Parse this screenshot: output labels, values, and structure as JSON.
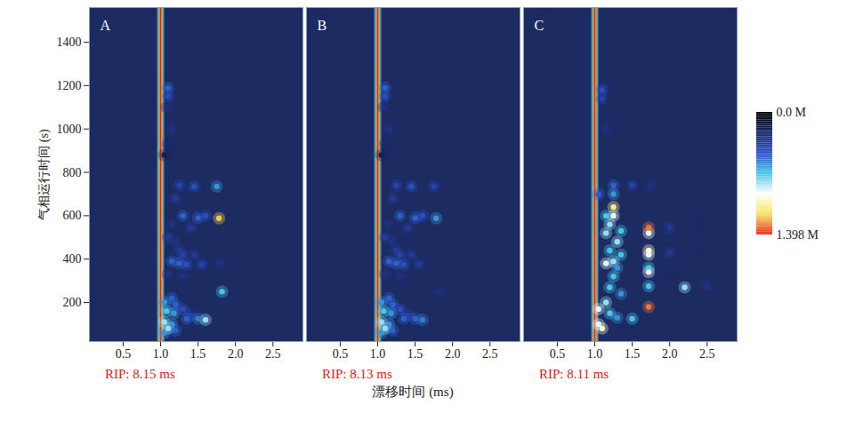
{
  "chart_data": {
    "type": "heatmap",
    "x_label": "漂移时间 (ms)",
    "y_label": "气相运行时间 (s)",
    "xlim": [
      0.05,
      2.9
    ],
    "xticks": [
      0.5,
      {
        "value": 1,
        "label": "1.0"
      },
      1.5,
      {
        "value": 2,
        "label": "2.0"
      },
      2.5
    ],
    "ylim": [
      20,
      1560
    ],
    "yticks": [
      200,
      400,
      600,
      800,
      1000,
      1200,
      1400
    ],
    "colorbar": {
      "range": [
        0,
        1.398
      ],
      "ticks": [
        {
          "value": 0,
          "label": "0.0 M"
        },
        {
          "value": 1.398,
          "label": "1.398 M"
        }
      ]
    },
    "panels": [
      {
        "title": "A",
        "annotation": "RIP: 8.15 ms",
        "rip_position": 1.0,
        "spots": {
          "x": [
            1.1,
            1.1,
            1.08,
            1.15,
            1.1,
            1.05,
            1.25,
            1.45,
            1.75,
            1.2,
            1.3,
            1.5,
            1.6,
            1.78,
            1.15,
            1.4,
            1.1,
            1.2,
            1.25,
            1.3,
            1.45,
            1.15,
            1.25,
            1.35,
            1.55,
            1.8,
            1.1,
            1.3,
            1.82,
            1.15,
            1.05,
            1.2,
            1.3,
            1.08,
            1.18,
            1.4,
            1.5,
            1.6,
            1.35,
            1.05,
            1.15,
            1.1,
            1.05,
            1.2
          ],
          "y": [
            1190,
            1150,
            1100,
            1000,
            930,
            880,
            740,
            735,
            735,
            680,
            600,
            590,
            600,
            588,
            560,
            545,
            500,
            480,
            440,
            420,
            420,
            390,
            380,
            375,
            375,
            380,
            330,
            320,
            250,
            220,
            200,
            190,
            170,
            160,
            150,
            140,
            125,
            120,
            125,
            110,
            100,
            80,
            60,
            70
          ],
          "values": [
            0.5,
            0.45,
            0.3,
            0.3,
            0.25,
            0.2,
            0.4,
            0.45,
            0.6,
            0.35,
            0.5,
            0.5,
            0.45,
            1.2,
            0.3,
            0.35,
            0.35,
            0.3,
            0.35,
            0.4,
            0.35,
            0.5,
            0.5,
            0.45,
            0.4,
            0.3,
            0.3,
            0.3,
            0.7,
            0.5,
            0.6,
            0.5,
            0.45,
            0.7,
            0.6,
            0.4,
            0.55,
            0.8,
            0.5,
            0.8,
            0.6,
            0.8,
            0.6,
            0.5
          ]
        }
      },
      {
        "title": "B",
        "annotation": "RIP: 8.13 ms",
        "rip_position": 1.0,
        "tick_labels": "x",
        "spots": {
          "x": [
            1.1,
            1.1,
            1.08,
            1.15,
            1.1,
            1.05,
            1.25,
            1.45,
            1.75,
            1.2,
            1.3,
            1.5,
            1.6,
            1.78,
            1.15,
            1.4,
            1.1,
            1.2,
            1.25,
            1.3,
            1.45,
            1.15,
            1.25,
            1.35,
            1.55,
            1.1,
            1.3,
            1.82,
            1.15,
            1.05,
            1.2,
            1.3,
            1.08,
            1.18,
            1.4,
            1.5,
            1.6,
            1.35,
            1.05,
            1.15,
            1.1,
            1.05,
            1.2
          ],
          "y": [
            1190,
            1150,
            1100,
            1000,
            930,
            880,
            740,
            735,
            735,
            680,
            600,
            590,
            600,
            588,
            560,
            545,
            500,
            480,
            440,
            420,
            420,
            390,
            380,
            375,
            375,
            330,
            320,
            250,
            220,
            200,
            190,
            170,
            160,
            150,
            140,
            125,
            120,
            125,
            110,
            100,
            80,
            60,
            70
          ],
          "values": [
            0.5,
            0.45,
            0.3,
            0.3,
            0.25,
            0.2,
            0.4,
            0.45,
            0.4,
            0.35,
            0.5,
            0.5,
            0.45,
            0.6,
            0.3,
            0.35,
            0.35,
            0.3,
            0.35,
            0.4,
            0.35,
            0.5,
            0.5,
            0.45,
            0.35,
            0.3,
            0.3,
            0.3,
            0.5,
            0.6,
            0.5,
            0.45,
            0.7,
            0.6,
            0.4,
            0.5,
            0.55,
            0.5,
            0.8,
            0.6,
            0.8,
            0.6,
            0.5
          ]
        }
      },
      {
        "title": "C",
        "annotation": "RIP: 8.11 ms",
        "rip_position": 1.0,
        "tick_labels": "x",
        "spots": {
          "x": [
            1.72,
            1.72,
            1.72,
            1.72,
            1.72,
            1.72,
            2.2,
            1.72,
            1.72,
            1.25,
            1.25,
            1.15,
            1.2,
            1.15,
            1.3,
            1.2,
            1.35,
            1.25,
            1.15,
            1.3,
            1.25,
            1.2,
            1.35,
            1.15,
            1.05,
            1.2,
            1.3,
            1.5,
            1.05,
            1.1,
            1.1,
            1.1,
            1.15,
            1.25,
            1.5,
            1.75,
            1.05,
            1.25,
            1.35,
            2.0,
            2.4,
            2.0,
            2.4,
            2.5,
            2.0
          ],
          "y": [
            545,
            520,
            440,
            420,
            340,
            360,
            270,
            275,
            180,
            640,
            600,
            600,
            560,
            520,
            480,
            440,
            420,
            390,
            380,
            360,
            320,
            270,
            240,
            200,
            170,
            150,
            130,
            125,
            100,
            80,
            1180,
            1140,
            1000,
            740,
            740,
            740,
            700,
            700,
            530,
            545,
            545,
            430,
            430,
            275,
            330
          ],
          "values": [
            1.3,
            0.9,
            1.0,
            0.9,
            0.9,
            0.7,
            0.8,
            0.7,
            1.3,
            1.1,
            0.9,
            0.7,
            0.8,
            0.8,
            0.8,
            0.7,
            0.7,
            0.8,
            0.9,
            0.6,
            0.7,
            0.7,
            0.6,
            0.8,
            0.9,
            0.7,
            0.6,
            0.7,
            0.9,
            1.0,
            0.45,
            0.4,
            0.3,
            0.5,
            0.4,
            0.3,
            0.5,
            0.6,
            0.7,
            0.35,
            0.25,
            0.35,
            0.25,
            0.3,
            0.25
          ]
        }
      }
    ]
  }
}
